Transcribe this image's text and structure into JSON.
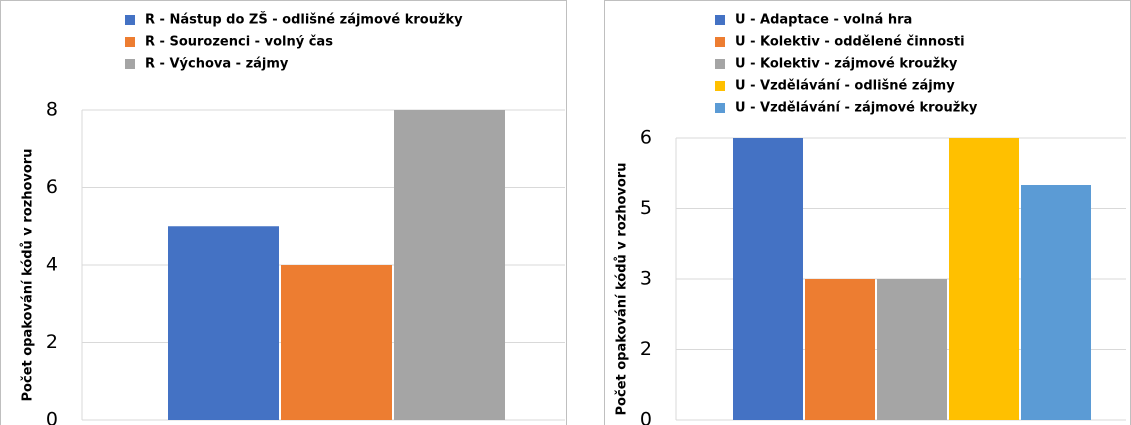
{
  "chart_data": [
    {
      "type": "bar",
      "ylabel": "Počet opakování kódů v rozhovoru",
      "categories": [
        null
      ],
      "series": [
        {
          "name": "R - Nástup do ZŠ - odlišné zájmové kroužky",
          "color": "#4472c4",
          "values": [
            5
          ]
        },
        {
          "name": "R - Sourozenci - volný čas",
          "color": "#ed7d31",
          "values": [
            4
          ]
        },
        {
          "name": "R - Výchova - zájmy",
          "color": "#a5a5a5",
          "values": [
            8
          ]
        }
      ],
      "ylim": [
        0,
        8
      ],
      "yticks": [
        0,
        2,
        4,
        6,
        8
      ],
      "grid": true
    },
    {
      "type": "bar",
      "ylabel": "Počet opakování kódů v rozhovoru",
      "categories": [
        null
      ],
      "series": [
        {
          "name": "U - Adaptace - volná hra",
          "color": "#4472c4",
          "values": [
            6
          ]
        },
        {
          "name": "U - Kolektiv - oddělené činnosti",
          "color": "#ed7d31",
          "values": [
            3
          ]
        },
        {
          "name": "U - Kolektiv - zájmové kroužky",
          "color": "#a5a5a5",
          "values": [
            3
          ]
        },
        {
          "name": "U - Vzdělávání - odlišné zájmy",
          "color": "#ffc000",
          "values": [
            6
          ]
        },
        {
          "name": "U - Vzdělávání - zájmové kroužky",
          "color": "#5b9bd5",
          "values": [
            5
          ]
        }
      ],
      "ylim": [
        0,
        6
      ],
      "yticks": [
        0,
        {
          "value": 1.5,
          "label": "2"
        },
        3,
        {
          "value": 4.5,
          "label": "5"
        },
        6
      ],
      "grid": true
    }
  ]
}
